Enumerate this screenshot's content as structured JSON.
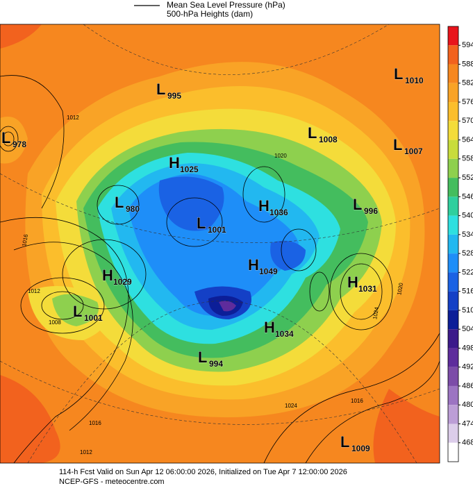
{
  "legend": {
    "items": [
      "Mean Sea Level Pressure (hPa)",
      "500-hPa Heights (dam)"
    ]
  },
  "colorbar": {
    "labels": [
      594,
      588,
      582,
      576,
      570,
      564,
      558,
      552,
      546,
      540,
      534,
      528,
      522,
      516,
      510,
      504,
      498,
      492,
      486,
      480,
      474,
      468
    ],
    "colors": [
      "#e8141c",
      "#f2621e",
      "#f6871f",
      "#f9a326",
      "#fbbe2c",
      "#f4dc3a",
      "#c8dc3c",
      "#8ed04e",
      "#44bd5e",
      "#2fcf9e",
      "#2ee0e0",
      "#22b8f0",
      "#1e8ef8",
      "#1a62e4",
      "#1440c6",
      "#0c1e98",
      "#3c1a8a",
      "#5e2c9c",
      "#7c4ca8",
      "#9c74c2",
      "#bc9ed6",
      "#dccdea",
      "#ffffff"
    ]
  },
  "centers": [
    {
      "letter": "L",
      "value": "1010"
    },
    {
      "letter": "L",
      "value": "995"
    },
    {
      "letter": "L",
      "value": "978"
    },
    {
      "letter": "L",
      "value": "1008"
    },
    {
      "letter": "L",
      "value": "1007"
    },
    {
      "letter": "H",
      "value": "1025"
    },
    {
      "letter": "L",
      "value": "980"
    },
    {
      "letter": "H",
      "value": "1036"
    },
    {
      "letter": "L",
      "value": "996"
    },
    {
      "letter": "L",
      "value": "1001"
    },
    {
      "letter": "H",
      "value": "1049"
    },
    {
      "letter": "H",
      "value": "1029"
    },
    {
      "letter": "H",
      "value": "1031"
    },
    {
      "letter": "L",
      "value": "1001"
    },
    {
      "letter": "H",
      "value": "1034"
    },
    {
      "letter": "L",
      "value": "994"
    },
    {
      "letter": "L",
      "value": "1009"
    }
  ],
  "contour_labels": [
    "1012",
    "1016",
    "1008",
    "1012",
    "1020",
    "1024",
    "1016",
    "1020",
    "1024",
    "1016",
    "1012"
  ],
  "footer": [
    "114-h Fcst Valid on Sun Apr 12 06:00:00 2026, Initialized on Tue Apr  7 12:00:00 2026",
    "NCEP-GFS  -  meteocentre.com"
  ]
}
